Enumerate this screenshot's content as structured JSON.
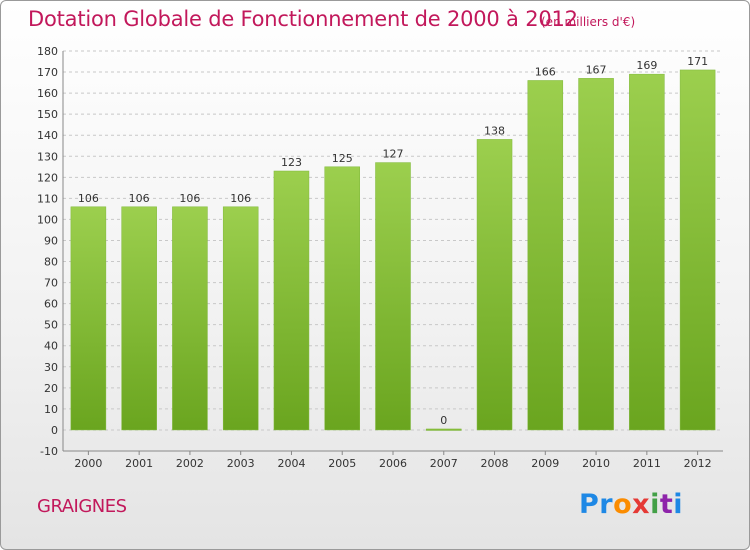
{
  "chart_data": {
    "type": "bar",
    "title": "Dotation Globale de Fonctionnement de 2000 à 2012",
    "subtitle": "(en milliers d'€)",
    "categories": [
      "2000",
      "2001",
      "2002",
      "2003",
      "2004",
      "2005",
      "2006",
      "2007",
      "2008",
      "2009",
      "2010",
      "2011",
      "2012"
    ],
    "values": [
      106,
      106,
      106,
      106,
      123,
      125,
      127,
      0,
      138,
      166,
      167,
      169,
      171
    ],
    "ylim": [
      -10,
      180
    ],
    "yticks": [
      -10,
      0,
      10,
      20,
      30,
      40,
      50,
      60,
      70,
      80,
      90,
      100,
      110,
      120,
      130,
      140,
      150,
      160,
      170,
      180
    ],
    "grid": true,
    "bar_color": "#8cc63f"
  },
  "footer": {
    "commune": "GRAIGNES",
    "logo": [
      "Pr",
      "o",
      "x",
      "i",
      "t",
      "i"
    ]
  }
}
